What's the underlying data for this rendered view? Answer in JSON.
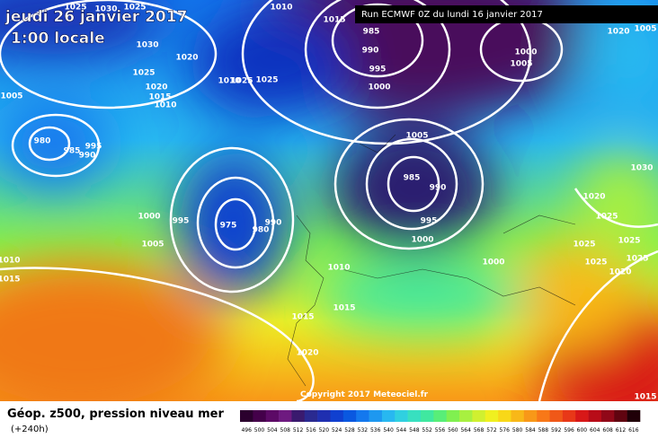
{
  "header": {
    "date": "jeudi 26 janvier 2017",
    "time": "1:00 locale",
    "run": "Run ECMWF 0Z du lundi 16 janvier 2017"
  },
  "footer": {
    "title": "Géop. z500, pression niveau mer",
    "lead": "(+240h)",
    "copyright": "Copyright 2017 Meteociel.fr"
  },
  "isobar_labels": [
    "1025",
    "1030",
    "1025",
    "1010",
    "1015",
    "985",
    "990",
    "995",
    "1000",
    "1000",
    "1005",
    "1020",
    "1005",
    "1030",
    "1025",
    "1020",
    "1020",
    "1015",
    "1010",
    "1025",
    "1025",
    "1010",
    "1005",
    "980",
    "985",
    "995",
    "990",
    "1005",
    "985",
    "990",
    "995",
    "1000",
    "995",
    "975",
    "980",
    "990",
    "1005",
    "1010",
    "1015",
    "1000",
    "1000",
    "1010",
    "1015",
    "1015",
    "1020",
    "1030",
    "1020",
    "1025",
    "1025",
    "1025",
    "1025",
    "1025",
    "1020",
    "1015"
  ],
  "legend": {
    "labels": [
      496,
      500,
      504,
      508,
      512,
      516,
      520,
      524,
      528,
      532,
      536,
      540,
      544,
      548,
      552,
      556,
      560,
      564,
      568,
      572,
      576,
      580,
      584,
      588,
      592,
      596,
      600,
      604,
      608,
      612,
      616
    ],
    "colors": [
      "#2b002e",
      "#44004a",
      "#5c0a66",
      "#6e1a80",
      "#3a1a6e",
      "#2a2a90",
      "#1f2fb0",
      "#1040d0",
      "#0a58e0",
      "#1478ee",
      "#1e98f0",
      "#28b8f0",
      "#30d0e0",
      "#38e0c0",
      "#40e8a0",
      "#58ee78",
      "#80f050",
      "#a8f040",
      "#d0f030",
      "#f0f020",
      "#f8d818",
      "#f8b818",
      "#f89818",
      "#f87818",
      "#f05818",
      "#e83818",
      "#d81818",
      "#b80c18",
      "#900818",
      "#600410",
      "#200008"
    ]
  }
}
